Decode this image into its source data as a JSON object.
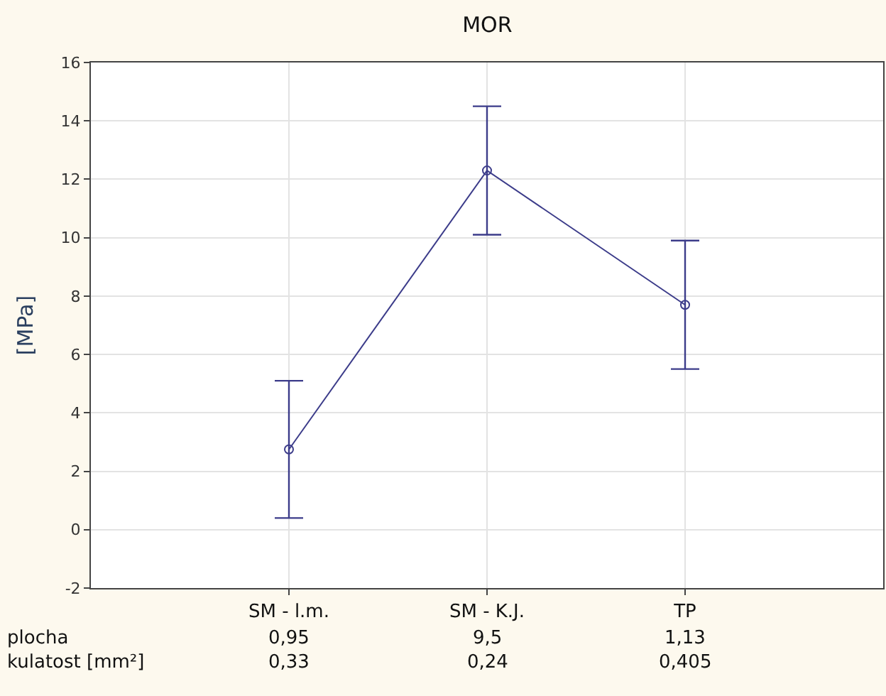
{
  "chart_data": {
    "type": "line",
    "title": "MOR",
    "ylabel": "[MPa]",
    "categories": [
      "SM - l.m.",
      "SM - K.J.",
      "TP"
    ],
    "series": [
      {
        "color": "#3c3c8a",
        "values": [
          2.75,
          12.3,
          7.7
        ],
        "errors": [
          [
            0.4,
            5.1
          ],
          [
            10.1,
            14.5
          ],
          [
            5.5,
            9.9
          ]
        ]
      }
    ],
    "ylim": [
      -2,
      16
    ],
    "yticks": [
      -2,
      0,
      2,
      4,
      6,
      8,
      10,
      12,
      14,
      16
    ],
    "grid": true,
    "marker": "circle",
    "line_style": "solid",
    "annotations": [
      "plocha",
      "0,95",
      "9,5",
      "1,13",
      "kulatost [mm²]",
      "0,33",
      "0,24",
      "0,405"
    ]
  }
}
